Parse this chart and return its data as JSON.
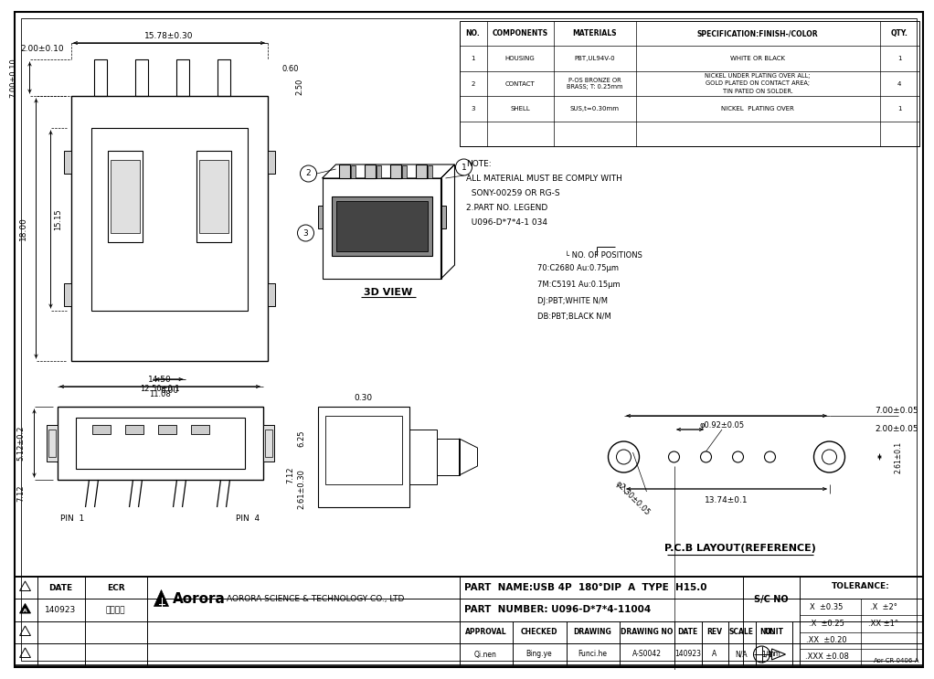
{
  "part_name": "PART  NAME:USB 4P  180°DIP  A  TYPE  H15.0",
  "part_number": "PART  NUMBER: U096-D*7*4-11004",
  "company_logo": "Aorora",
  "company_name": "AORORA SCIENCE & TECHNOLOGY CO., LTD",
  "drawing_no": "A-S0042",
  "date": "140923",
  "rev": "A",
  "scale": "N/A",
  "unit": "mm",
  "no": "1/1",
  "sc_no": "S/C NO",
  "approval": "Qi.nen",
  "checked": "Bing.ye",
  "drawing_person": "Funci.he",
  "ecr_date": "140923",
  "ecr_text": "首版发行",
  "tolerance_header": "TOLERANCE:",
  "tolerances_left": [
    "X  ±0.35",
    ".X  ±0.25",
    ".XX  ±0.20",
    ".XXX ±0.08"
  ],
  "tolerances_right": [
    ".X  ±2°",
    ".XX ±1°",
    "",
    ""
  ],
  "ref_code": "Aor-CR-0406-A",
  "bg_color": "#ffffff",
  "note_lines": [
    "NOTE:",
    "ALL MATERIAL MUST BE COMPLY WITH",
    "  SONY-00259 OR RG-S",
    "2.PART NO. LEGEND",
    "  U096-D*7*4-1 034"
  ],
  "legend_lines": [
    "└ NO. OF POSITIONS",
    "70:C2680 Au:0.75μm",
    "7M:C5191 Au:0.15μm",
    "DJ:PBT;WHITE N/M",
    "DB:PBT;BLACK N/M"
  ],
  "comp_headers": [
    "NO.",
    "COMPONENTS",
    "MATERIALS",
    "SPECIFICATION:FINISH-/COLOR",
    "QTY."
  ],
  "comp_rows": [
    [
      "1",
      "HOUSING",
      "PBT,UL94V-0",
      "WHITE OR BLACK",
      "1"
    ],
    [
      "2",
      "CONTACT",
      "P-OS BRONZE OR\nBRASS; T: 0.25mm",
      "NICKEL UNDER PLATING OVER ALL;\nGOLD PLATED ON CONTACT AREA;\nTIN PATED ON SOLDER.",
      "4"
    ],
    [
      "3",
      "SHELL",
      "SUS,t=0.30mm",
      "NICKEL  PLATING OVER",
      "1"
    ]
  ],
  "view_3d": "3D VIEW",
  "pcb_label": "P.C.B LAYOUT(REFERENCE)",
  "dim_1578": "15.78±0.30",
  "dim_700_top": "7.00±0.10",
  "dim_200_top": "2.00±0.10",
  "dim_060": "0.60",
  "dim_250": "2.50",
  "dim_1800": "18.00",
  "dim_1515": "15.15",
  "dim_600": "6.00",
  "dim_1450": "14.50",
  "dim_1250": "12.50±0.1",
  "dim_1108": "11.08",
  "dim_5121": "5.12±0.2",
  "dim_712": "7.12",
  "dim_030_side": "0.30",
  "dim_625": "6.25",
  "dim_261_side": "2.61±0.30",
  "dim_phi092": "φ0.92±0.05",
  "dim_2230": "φ2.30±0.05",
  "dim_700_pcb": "7.00±0.05",
  "dim_200_pcb": "2.00±0.05",
  "dim_1374": "13.74±0.1",
  "dim_261_pcb": "2.61±0.1"
}
